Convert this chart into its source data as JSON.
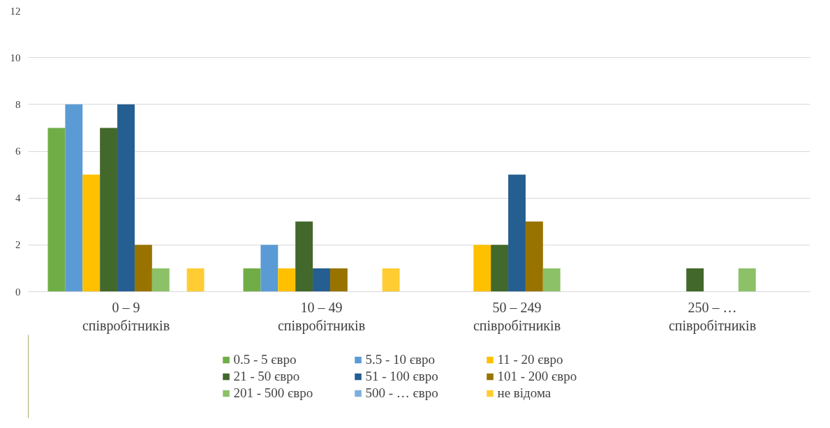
{
  "chart_data": {
    "type": "bar",
    "categories": [
      "0 – 9\nспівробітників",
      "10 – 49\nспівробітників",
      "50 – 249\nспівробітників",
      "250 – …\nспівробітників"
    ],
    "series": [
      {
        "name": "0.5 - 5 євро",
        "color": "#70ad47",
        "values": [
          7,
          1,
          0,
          0
        ]
      },
      {
        "name": "5.5 - 10 євро",
        "color": "#5b9bd5",
        "values": [
          8,
          2,
          0,
          0
        ]
      },
      {
        "name": "11 - 20 євро",
        "color": "#ffc000",
        "values": [
          5,
          1,
          2,
          0
        ]
      },
      {
        "name": "21 - 50 євро",
        "color": "#43682b",
        "values": [
          7,
          3,
          2,
          1
        ]
      },
      {
        "name": "51 - 100 євро",
        "color": "#255e91",
        "values": [
          8,
          1,
          5,
          0
        ]
      },
      {
        "name": "101 - 200 євро",
        "color": "#997300",
        "values": [
          2,
          1,
          3,
          0
        ]
      },
      {
        "name": "201 - 500 євро",
        "color": "#8cc168",
        "values": [
          1,
          0,
          1,
          1
        ]
      },
      {
        "name": "500 - … євро",
        "color": "#7cafdd",
        "values": [
          0,
          0,
          0,
          0
        ]
      },
      {
        "name": "не відома",
        "color": "#ffcd33",
        "values": [
          1,
          1,
          0,
          0
        ]
      }
    ],
    "ylim": [
      0,
      12
    ],
    "yticks": [
      0,
      2,
      4,
      6,
      8,
      10,
      12
    ],
    "grid": "y",
    "legend": "bottom"
  }
}
